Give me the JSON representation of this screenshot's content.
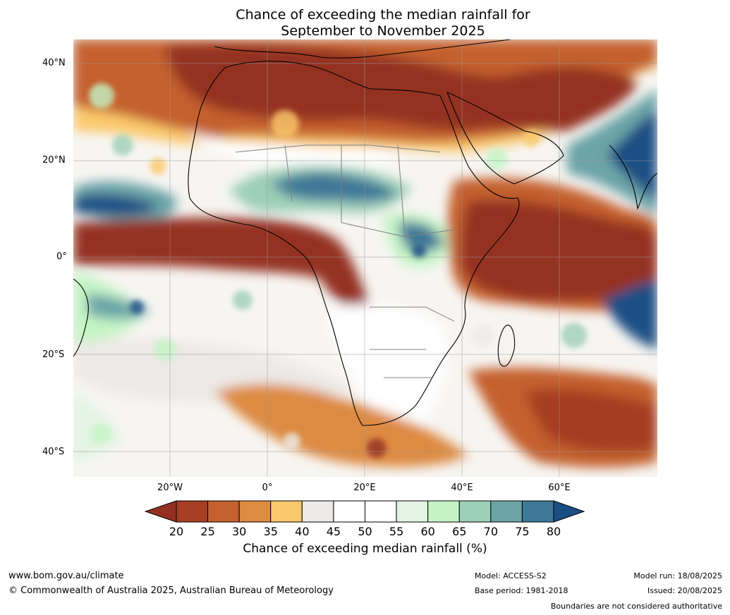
{
  "title": {
    "line1": "Chance of exceeding the median rainfall for",
    "line2": "September to November 2025"
  },
  "map": {
    "region": "Africa",
    "lat_labels": [
      "40°N",
      "20°N",
      "0°",
      "20°S",
      "40°S"
    ],
    "lon_labels": [
      "20°W",
      "0°",
      "20°E",
      "40°E",
      "60°E"
    ],
    "gridlines": true
  },
  "colorbar": {
    "ticks": [
      "20",
      "25",
      "30",
      "35",
      "40",
      "45",
      "50",
      "55",
      "60",
      "65",
      "70",
      "75",
      "80"
    ],
    "colors": [
      "#a63e22",
      "#c4612f",
      "#dd8a42",
      "#fbc96d",
      "#ece9e6",
      "#ffffff",
      "#ffffff",
      "#e3f4e3",
      "#c4f4c4",
      "#9ccfb7",
      "#6ca4a8",
      "#3f7898"
    ],
    "below_color": "#943022",
    "above_color": "#1a4f84",
    "label": "Chance of exceeding median rainfall (%)"
  },
  "footer": {
    "website": "www.bom.gov.au/climate",
    "copyright": "© Commonwealth of Australia 2025, Australian Bureau of Meteorology",
    "model": "Model: ACCESS-S2",
    "base_period": "Base period: 1981-2018",
    "model_run": "Model run: 18/08/2025",
    "issued": "Issued: 20/08/2025",
    "disclaimer": "Boundaries are not considered authoritative"
  }
}
